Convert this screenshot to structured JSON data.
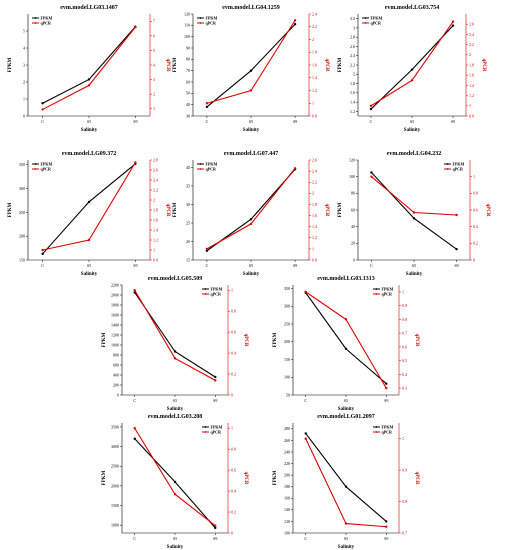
{
  "chart_data": [
    {
      "type": "line",
      "title": "evm.model.LG03.1407",
      "categories": [
        "C",
        "S5",
        "S9"
      ],
      "xlabel": "Salinity",
      "ylabel": "FPKM",
      "y2label": "qPCR",
      "ylim": [
        0,
        6
      ],
      "yticks": [
        0,
        1,
        2,
        3,
        4,
        5
      ],
      "y2lim": [
        0.5,
        7.5
      ],
      "y2ticks": [
        1,
        2,
        3,
        4,
        5,
        6,
        7
      ],
      "series": [
        {
          "name": "FPKM",
          "axis": "left",
          "color": "#000000",
          "values": [
            0.75,
            2.15,
            5.25
          ]
        },
        {
          "name": "qPCR",
          "axis": "right",
          "color": "#e00000",
          "values": [
            0.95,
            2.6,
            6.6
          ]
        }
      ],
      "legend": "top-left"
    },
    {
      "type": "line",
      "title": "evm.model.LG04.1259",
      "categories": [
        "C",
        "S5",
        "S9"
      ],
      "xlabel": "Salinity",
      "ylabel": "FPKM",
      "y2label": "qPCR",
      "ylim": [
        30,
        120
      ],
      "yticks": [
        30,
        40,
        50,
        60,
        70,
        80,
        90,
        100,
        110,
        120
      ],
      "y2lim": [
        0.8,
        2.4
      ],
      "y2ticks": [
        0.8,
        1.0,
        1.2,
        1.4,
        1.6,
        1.8,
        2.0,
        2.2,
        2.4
      ],
      "series": [
        {
          "name": "FPKM",
          "axis": "left",
          "color": "#000000",
          "values": [
            38,
            70,
            111
          ]
        },
        {
          "name": "qPCR",
          "axis": "right",
          "color": "#e00000",
          "values": [
            1.0,
            1.2,
            2.3
          ]
        }
      ],
      "legend": "top-left"
    },
    {
      "type": "line",
      "title": "evm.model.LG03.754",
      "categories": [
        "C",
        "S5",
        "S9"
      ],
      "xlabel": "Salinity",
      "ylabel": "FPKM",
      "y2label": "qPCR",
      "ylim": [
        1.1,
        3.3
      ],
      "yticks": [
        1.2,
        1.4,
        1.6,
        1.8,
        2.0,
        2.2,
        2.4,
        2.6,
        2.8,
        3.0,
        3.2
      ],
      "y2lim": [
        0.8,
        2.8
      ],
      "y2ticks": [
        0.8,
        1.0,
        1.2,
        1.4,
        1.6,
        1.8,
        2.0,
        2.2,
        2.4,
        2.6
      ],
      "series": [
        {
          "name": "FPKM",
          "axis": "left",
          "color": "#000000",
          "values": [
            1.25,
            2.1,
            3.05
          ]
        },
        {
          "name": "qPCR",
          "axis": "right",
          "color": "#e00000",
          "values": [
            1.0,
            1.5,
            2.65
          ]
        }
      ],
      "legend": "top-left"
    },
    {
      "type": "line",
      "title": "evm.model.LG09.372",
      "categories": [
        "C",
        "S5",
        "S9"
      ],
      "xlabel": "Salinity",
      "ylabel": "FPKM",
      "y2label": "qPCR",
      "ylim": [
        150,
        360
      ],
      "yticks": [
        150,
        200,
        250,
        300,
        350
      ],
      "y2lim": [
        0.8,
        2.8
      ],
      "y2ticks": [
        0.8,
        1.0,
        1.2,
        1.4,
        1.6,
        1.8,
        2.0,
        2.2,
        2.4,
        2.6,
        2.8
      ],
      "series": [
        {
          "name": "FPKM",
          "axis": "left",
          "color": "#000000",
          "values": [
            163,
            272,
            352
          ]
        },
        {
          "name": "qPCR",
          "axis": "right",
          "color": "#e00000",
          "values": [
            1.0,
            1.2,
            2.75
          ]
        }
      ],
      "legend": "top-left"
    },
    {
      "type": "line",
      "title": "evm.model.LG07.447",
      "categories": [
        "C",
        "S5",
        "S9"
      ],
      "xlabel": "Salinity",
      "ylabel": "FPKM",
      "y2label": "qPCR",
      "ylim": [
        15,
        42
      ],
      "yticks": [
        15,
        20,
        25,
        30,
        35,
        40
      ],
      "y2lim": [
        0.8,
        2.6
      ],
      "y2ticks": [
        0.8,
        1.0,
        1.2,
        1.4,
        1.6,
        1.8,
        2.0,
        2.2,
        2.4,
        2.6
      ],
      "series": [
        {
          "name": "FPKM",
          "axis": "left",
          "color": "#000000",
          "values": [
            17.5,
            26,
            39.5
          ]
        },
        {
          "name": "qPCR",
          "axis": "right",
          "color": "#e00000",
          "values": [
            1.0,
            1.45,
            2.45
          ]
        }
      ],
      "legend": "top-left"
    },
    {
      "type": "line",
      "title": "evm.model.LG04.232",
      "categories": [
        "C",
        "S5",
        "S9"
      ],
      "xlabel": "Salinity",
      "ylabel": "FPKM",
      "y2label": "qPCR",
      "ylim": [
        0,
        120
      ],
      "yticks": [
        0,
        20,
        40,
        60,
        80,
        100,
        120
      ],
      "y2lim": [
        0,
        1.2
      ],
      "y2ticks": [
        0,
        0.2,
        0.4,
        0.6,
        0.8,
        1.0
      ],
      "series": [
        {
          "name": "FPKM",
          "axis": "left",
          "color": "#000000",
          "values": [
            105,
            50,
            13
          ]
        },
        {
          "name": "qPCR",
          "axis": "right",
          "color": "#e00000",
          "values": [
            1.0,
            0.57,
            0.54
          ]
        }
      ],
      "legend": "top-right"
    },
    {
      "type": "line",
      "title": "evm.model.LG05.509",
      "categories": [
        "C",
        "S5",
        "S9"
      ],
      "xlabel": "Salinity",
      "ylabel": "FPKM",
      "y2label": "qPCR",
      "ylim": [
        0,
        2200
      ],
      "yticks": [
        0,
        200,
        400,
        600,
        800,
        1000,
        1200,
        1400,
        1600,
        1800,
        2000,
        2200
      ],
      "y2lim": [
        0,
        1.05
      ],
      "y2ticks": [
        0,
        0.2,
        0.4,
        0.6,
        0.8,
        1.0
      ],
      "series": [
        {
          "name": "FPKM",
          "axis": "left",
          "color": "#000000",
          "values": [
            2050,
            870,
            360
          ]
        },
        {
          "name": "qPCR",
          "axis": "right",
          "color": "#e00000",
          "values": [
            1.0,
            0.35,
            0.14
          ]
        }
      ],
      "legend": "top-right"
    },
    {
      "type": "line",
      "title": "evm.model.LG03.1313",
      "categories": [
        "C",
        "S5",
        "S9"
      ],
      "xlabel": "Salinity",
      "ylabel": "FPKM",
      "y2label": "qPCR",
      "ylim": [
        50,
        360
      ],
      "yticks": [
        50,
        100,
        150,
        200,
        250,
        300,
        350
      ],
      "y2lim": [
        0.25,
        1.05
      ],
      "y2ticks": [
        0.3,
        0.4,
        0.5,
        0.6,
        0.7,
        0.8,
        0.9,
        1.0
      ],
      "series": [
        {
          "name": "FPKM",
          "axis": "left",
          "color": "#000000",
          "values": [
            338,
            180,
            82
          ]
        },
        {
          "name": "qPCR",
          "axis": "right",
          "color": "#e00000",
          "values": [
            1.0,
            0.8,
            0.3
          ]
        }
      ],
      "legend": "top-right"
    },
    {
      "type": "line",
      "title": "evm.model.LG03.208",
      "categories": [
        "C",
        "S5",
        "S9"
      ],
      "xlabel": "Salinity",
      "ylabel": "FPKM",
      "y2label": "qPCR",
      "ylim": [
        800,
        3600
      ],
      "yticks": [
        1000,
        1500,
        2000,
        2500,
        3000,
        3500
      ],
      "y2lim": [
        0,
        1.05
      ],
      "y2ticks": [
        0,
        0.2,
        0.4,
        0.6,
        0.8,
        1.0
      ],
      "series": [
        {
          "name": "FPKM",
          "axis": "left",
          "color": "#000000",
          "values": [
            3200,
            2100,
            930
          ]
        },
        {
          "name": "qPCR",
          "axis": "right",
          "color": "#e00000",
          "values": [
            1.0,
            0.37,
            0.07
          ]
        }
      ],
      "legend": "top-right"
    },
    {
      "type": "line",
      "title": "evm.model.LG01.2097",
      "categories": [
        "C",
        "S5",
        "S9"
      ],
      "xlabel": "Salinity",
      "ylabel": "FPKM",
      "y2label": "qPCR",
      "ylim": [
        100,
        290
      ],
      "yticks": [
        100,
        120,
        140,
        160,
        180,
        200,
        220,
        240,
        260,
        280
      ],
      "y2lim": [
        0.7,
        1.05
      ],
      "y2ticks": [
        0.7,
        0.8,
        0.9,
        1.0
      ],
      "series": [
        {
          "name": "FPKM",
          "axis": "left",
          "color": "#000000",
          "values": [
            272,
            180,
            120
          ]
        },
        {
          "name": "qPCR",
          "axis": "right",
          "color": "#e00000",
          "values": [
            1.0,
            0.73,
            0.72
          ]
        }
      ],
      "legend": "top-right"
    }
  ]
}
